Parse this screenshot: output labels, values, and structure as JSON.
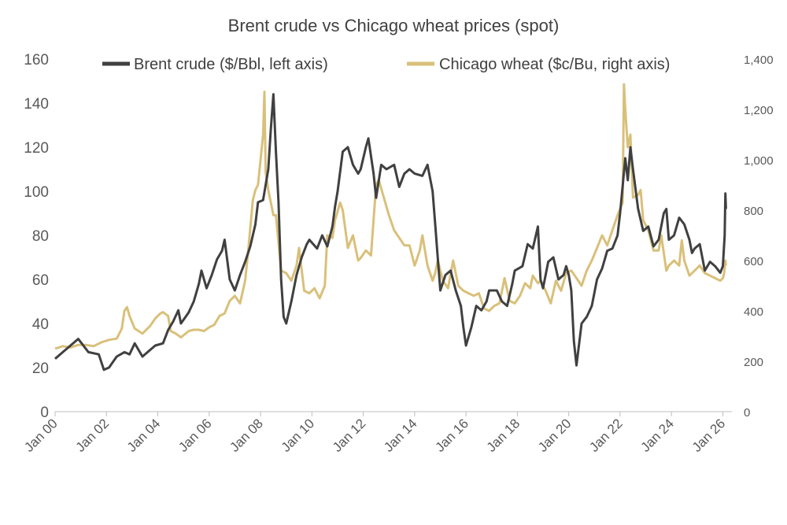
{
  "chart_data": {
    "type": "line",
    "title": "Brent crude vs Chicago wheat prices (spot)",
    "legend_position": "top",
    "grid": false,
    "x_axis": {
      "ticks": [
        "Jan 00",
        "Jan 02",
        "Jan 04",
        "Jan 06",
        "Jan 08",
        "Jan 10",
        "Jan 12",
        "Jan 14",
        "Jan 16",
        "Jan 18",
        "Jan 20",
        "Jan 22",
        "Jan 24",
        "Jan 26"
      ],
      "range": [
        2000.0,
        2026.2
      ]
    },
    "y_left": {
      "ticks": [
        "0",
        "20",
        "40",
        "60",
        "80",
        "100",
        "120",
        "140",
        "160"
      ],
      "ylim": [
        0,
        160
      ]
    },
    "y_right": {
      "ticks": [
        "0",
        "200",
        "400",
        "600",
        "800",
        "1,000",
        "1,200",
        "1,400"
      ],
      "ylim": [
        0,
        1400
      ]
    },
    "series": [
      {
        "name": "Brent crude ($/Bbl, left axis)",
        "axis": "left",
        "color": "#404040",
        "points": [
          [
            2000.0,
            24
          ],
          [
            2000.3,
            27
          ],
          [
            2000.7,
            31
          ],
          [
            2000.9,
            33
          ],
          [
            2001.3,
            27
          ],
          [
            2001.7,
            26
          ],
          [
            2001.9,
            19
          ],
          [
            2002.1,
            20
          ],
          [
            2002.4,
            25
          ],
          [
            2002.7,
            27
          ],
          [
            2002.9,
            26
          ],
          [
            2003.1,
            31
          ],
          [
            2003.2,
            29
          ],
          [
            2003.4,
            25
          ],
          [
            2003.7,
            28
          ],
          [
            2003.9,
            30
          ],
          [
            2004.2,
            31
          ],
          [
            2004.4,
            37
          ],
          [
            2004.6,
            41
          ],
          [
            2004.8,
            46
          ],
          [
            2004.9,
            40
          ],
          [
            2005.2,
            45
          ],
          [
            2005.4,
            50
          ],
          [
            2005.6,
            58
          ],
          [
            2005.7,
            64
          ],
          [
            2005.9,
            56
          ],
          [
            2006.1,
            62
          ],
          [
            2006.3,
            69
          ],
          [
            2006.5,
            73
          ],
          [
            2006.6,
            78
          ],
          [
            2006.8,
            60
          ],
          [
            2007.0,
            55
          ],
          [
            2007.2,
            62
          ],
          [
            2007.4,
            68
          ],
          [
            2007.6,
            75
          ],
          [
            2007.8,
            85
          ],
          [
            2007.9,
            95
          ],
          [
            2008.1,
            96
          ],
          [
            2008.3,
            110
          ],
          [
            2008.4,
            128
          ],
          [
            2008.5,
            144
          ],
          [
            2008.6,
            118
          ],
          [
            2008.7,
            95
          ],
          [
            2008.8,
            60
          ],
          [
            2008.9,
            43
          ],
          [
            2009.0,
            40
          ],
          [
            2009.2,
            50
          ],
          [
            2009.4,
            62
          ],
          [
            2009.6,
            70
          ],
          [
            2009.8,
            76
          ],
          [
            2009.9,
            78
          ],
          [
            2010.2,
            74
          ],
          [
            2010.4,
            80
          ],
          [
            2010.6,
            75
          ],
          [
            2010.8,
            84
          ],
          [
            2010.9,
            93
          ],
          [
            2011.0,
            100
          ],
          [
            2011.2,
            118
          ],
          [
            2011.4,
            120
          ],
          [
            2011.6,
            112
          ],
          [
            2011.8,
            108
          ],
          [
            2011.9,
            110
          ],
          [
            2012.1,
            120
          ],
          [
            2012.2,
            124
          ],
          [
            2012.4,
            108
          ],
          [
            2012.5,
            97
          ],
          [
            2012.7,
            112
          ],
          [
            2012.9,
            110
          ],
          [
            2013.2,
            112
          ],
          [
            2013.4,
            102
          ],
          [
            2013.6,
            108
          ],
          [
            2013.8,
            110
          ],
          [
            2014.0,
            108
          ],
          [
            2014.3,
            107
          ],
          [
            2014.5,
            112
          ],
          [
            2014.7,
            100
          ],
          [
            2014.8,
            85
          ],
          [
            2014.9,
            70
          ],
          [
            2015.0,
            55
          ],
          [
            2015.2,
            62
          ],
          [
            2015.4,
            64
          ],
          [
            2015.6,
            55
          ],
          [
            2015.8,
            48
          ],
          [
            2015.9,
            38
          ],
          [
            2016.0,
            30
          ],
          [
            2016.2,
            38
          ],
          [
            2016.4,
            48
          ],
          [
            2016.6,
            46
          ],
          [
            2016.8,
            50
          ],
          [
            2016.9,
            55
          ],
          [
            2017.2,
            55
          ],
          [
            2017.4,
            50
          ],
          [
            2017.6,
            48
          ],
          [
            2017.8,
            58
          ],
          [
            2017.9,
            64
          ],
          [
            2018.2,
            66
          ],
          [
            2018.4,
            76
          ],
          [
            2018.6,
            74
          ],
          [
            2018.8,
            84
          ],
          [
            2018.9,
            60
          ],
          [
            2019.0,
            56
          ],
          [
            2019.2,
            68
          ],
          [
            2019.4,
            70
          ],
          [
            2019.6,
            60
          ],
          [
            2019.8,
            62
          ],
          [
            2019.9,
            66
          ],
          [
            2020.0,
            62
          ],
          [
            2020.1,
            55
          ],
          [
            2020.2,
            32
          ],
          [
            2020.3,
            21
          ],
          [
            2020.5,
            40
          ],
          [
            2020.7,
            43
          ],
          [
            2020.9,
            48
          ],
          [
            2021.1,
            60
          ],
          [
            2021.3,
            65
          ],
          [
            2021.5,
            73
          ],
          [
            2021.7,
            74
          ],
          [
            2021.9,
            80
          ],
          [
            2022.0,
            90
          ],
          [
            2022.2,
            115
          ],
          [
            2022.3,
            105
          ],
          [
            2022.4,
            120
          ],
          [
            2022.5,
            110
          ],
          [
            2022.7,
            92
          ],
          [
            2022.9,
            82
          ],
          [
            2023.1,
            84
          ],
          [
            2023.3,
            75
          ],
          [
            2023.5,
            78
          ],
          [
            2023.7,
            90
          ],
          [
            2023.8,
            92
          ],
          [
            2023.9,
            78
          ],
          [
            2024.1,
            80
          ],
          [
            2024.3,
            88
          ],
          [
            2024.5,
            85
          ],
          [
            2024.7,
            78
          ],
          [
            2024.8,
            72
          ],
          [
            2024.9,
            74
          ],
          [
            2025.1,
            76
          ],
          [
            2025.3,
            64
          ],
          [
            2025.5,
            68
          ],
          [
            2025.7,
            66
          ],
          [
            2025.9,
            63
          ],
          [
            2026.0,
            66
          ],
          [
            2026.07,
            80
          ],
          [
            2026.1,
            99
          ],
          [
            2026.12,
            92
          ]
        ]
      },
      {
        "name": "Chicago wheat ($c/Bu, right axis)",
        "axis": "right",
        "color": "#d9c07a",
        "points": [
          [
            2000.0,
            250
          ],
          [
            2000.3,
            260
          ],
          [
            2000.6,
            255
          ],
          [
            2000.9,
            265
          ],
          [
            2001.2,
            265
          ],
          [
            2001.5,
            260
          ],
          [
            2001.8,
            275
          ],
          [
            2002.1,
            285
          ],
          [
            2002.4,
            290
          ],
          [
            2002.6,
            330
          ],
          [
            2002.7,
            400
          ],
          [
            2002.8,
            415
          ],
          [
            2002.9,
            380
          ],
          [
            2003.1,
            330
          ],
          [
            2003.4,
            310
          ],
          [
            2003.7,
            340
          ],
          [
            2003.9,
            370
          ],
          [
            2004.1,
            390
          ],
          [
            2004.2,
            395
          ],
          [
            2004.4,
            380
          ],
          [
            2004.5,
            320
          ],
          [
            2004.7,
            310
          ],
          [
            2004.9,
            295
          ],
          [
            2005.2,
            320
          ],
          [
            2005.4,
            325
          ],
          [
            2005.6,
            325
          ],
          [
            2005.8,
            320
          ],
          [
            2006.0,
            335
          ],
          [
            2006.2,
            345
          ],
          [
            2006.4,
            380
          ],
          [
            2006.6,
            390
          ],
          [
            2006.8,
            440
          ],
          [
            2007.0,
            460
          ],
          [
            2007.2,
            430
          ],
          [
            2007.4,
            520
          ],
          [
            2007.5,
            620
          ],
          [
            2007.7,
            840
          ],
          [
            2007.8,
            880
          ],
          [
            2007.9,
            900
          ],
          [
            2008.0,
            1000
          ],
          [
            2008.1,
            1100
          ],
          [
            2008.15,
            1270
          ],
          [
            2008.2,
            950
          ],
          [
            2008.3,
            880
          ],
          [
            2008.5,
            780
          ],
          [
            2008.6,
            780
          ],
          [
            2008.8,
            560
          ],
          [
            2009.0,
            550
          ],
          [
            2009.2,
            520
          ],
          [
            2009.4,
            580
          ],
          [
            2009.5,
            650
          ],
          [
            2009.7,
            480
          ],
          [
            2009.9,
            470
          ],
          [
            2010.1,
            490
          ],
          [
            2010.3,
            450
          ],
          [
            2010.5,
            500
          ],
          [
            2010.6,
            700
          ],
          [
            2010.8,
            690
          ],
          [
            2010.9,
            760
          ],
          [
            2011.1,
            830
          ],
          [
            2011.2,
            800
          ],
          [
            2011.4,
            650
          ],
          [
            2011.6,
            700
          ],
          [
            2011.8,
            600
          ],
          [
            2011.9,
            610
          ],
          [
            2012.1,
            640
          ],
          [
            2012.3,
            620
          ],
          [
            2012.5,
            900
          ],
          [
            2012.6,
            920
          ],
          [
            2012.8,
            850
          ],
          [
            2013.0,
            780
          ],
          [
            2013.2,
            720
          ],
          [
            2013.4,
            690
          ],
          [
            2013.6,
            660
          ],
          [
            2013.8,
            660
          ],
          [
            2014.0,
            580
          ],
          [
            2014.2,
            640
          ],
          [
            2014.3,
            700
          ],
          [
            2014.5,
            580
          ],
          [
            2014.7,
            520
          ],
          [
            2014.8,
            550
          ],
          [
            2014.9,
            600
          ],
          [
            2015.1,
            520
          ],
          [
            2015.3,
            490
          ],
          [
            2015.5,
            600
          ],
          [
            2015.7,
            500
          ],
          [
            2015.9,
            480
          ],
          [
            2016.1,
            470
          ],
          [
            2016.3,
            460
          ],
          [
            2016.5,
            470
          ],
          [
            2016.7,
            410
          ],
          [
            2016.9,
            400
          ],
          [
            2017.1,
            420
          ],
          [
            2017.3,
            430
          ],
          [
            2017.5,
            530
          ],
          [
            2017.7,
            440
          ],
          [
            2017.9,
            430
          ],
          [
            2018.1,
            460
          ],
          [
            2018.3,
            510
          ],
          [
            2018.5,
            490
          ],
          [
            2018.6,
            540
          ],
          [
            2018.8,
            510
          ],
          [
            2018.9,
            520
          ],
          [
            2019.1,
            480
          ],
          [
            2019.3,
            430
          ],
          [
            2019.5,
            520
          ],
          [
            2019.7,
            480
          ],
          [
            2019.9,
            550
          ],
          [
            2020.1,
            560
          ],
          [
            2020.3,
            530
          ],
          [
            2020.5,
            500
          ],
          [
            2020.7,
            560
          ],
          [
            2020.9,
            600
          ],
          [
            2021.1,
            650
          ],
          [
            2021.3,
            700
          ],
          [
            2021.5,
            660
          ],
          [
            2021.7,
            720
          ],
          [
            2021.9,
            780
          ],
          [
            2022.1,
            830
          ],
          [
            2022.15,
            1300
          ],
          [
            2022.2,
            1200
          ],
          [
            2022.3,
            1050
          ],
          [
            2022.4,
            1100
          ],
          [
            2022.5,
            850
          ],
          [
            2022.7,
            860
          ],
          [
            2022.8,
            880
          ],
          [
            2022.9,
            760
          ],
          [
            2023.1,
            720
          ],
          [
            2023.3,
            640
          ],
          [
            2023.5,
            640
          ],
          [
            2023.6,
            700
          ],
          [
            2023.8,
            560
          ],
          [
            2023.9,
            580
          ],
          [
            2024.1,
            600
          ],
          [
            2024.3,
            580
          ],
          [
            2024.4,
            680
          ],
          [
            2024.5,
            600
          ],
          [
            2024.7,
            540
          ],
          [
            2024.9,
            560
          ],
          [
            2025.1,
            580
          ],
          [
            2025.3,
            550
          ],
          [
            2025.5,
            540
          ],
          [
            2025.7,
            530
          ],
          [
            2025.9,
            520
          ],
          [
            2026.0,
            530
          ],
          [
            2026.05,
            550
          ],
          [
            2026.1,
            600
          ],
          [
            2026.12,
            580
          ]
        ]
      }
    ]
  }
}
